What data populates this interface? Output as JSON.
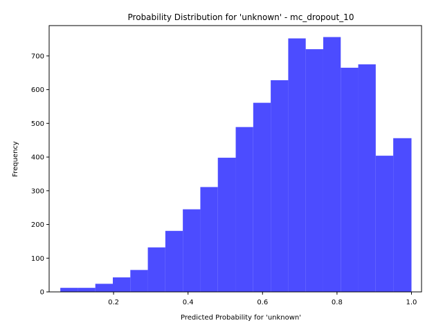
{
  "chart_data": {
    "type": "bar",
    "title": "Probability Distribution for 'unknown' - mc_dropout_10",
    "xlabel": "Predicted Probability for 'unknown'",
    "ylabel": "Frequency",
    "xlim": [
      0.027,
      1.027
    ],
    "ylim": [
      0,
      790
    ],
    "xticks": [
      0.2,
      0.4,
      0.6,
      0.8,
      1.0
    ],
    "xtick_labels": [
      "0.2",
      "0.4",
      "0.6",
      "0.8",
      "1.0"
    ],
    "yticks": [
      0,
      100,
      200,
      300,
      400,
      500,
      600,
      700
    ],
    "ytick_labels": [
      "0",
      "100",
      "200",
      "300",
      "400",
      "500",
      "600",
      "700"
    ],
    "bin_edges": [
      0.057,
      0.104,
      0.151,
      0.198,
      0.245,
      0.292,
      0.339,
      0.386,
      0.433,
      0.48,
      0.528,
      0.575,
      0.622,
      0.669,
      0.716,
      0.763,
      0.81,
      0.857,
      0.904,
      0.951,
      1.0
    ],
    "values": [
      12,
      12,
      24,
      43,
      65,
      132,
      181,
      245,
      311,
      398,
      489,
      561,
      628,
      752,
      720,
      756,
      665,
      675,
      404,
      456
    ],
    "bar_color": "#4c4cff",
    "grid": false,
    "legend": "none"
  }
}
